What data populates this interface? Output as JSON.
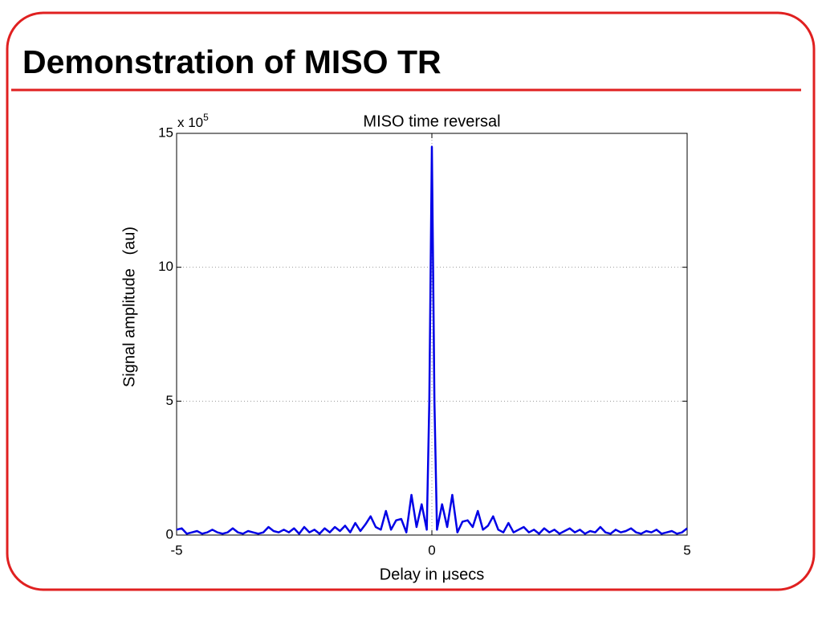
{
  "slide_title": "Demonstration of MISO TR",
  "chart_data": {
    "type": "line",
    "title": "MISO time reversal",
    "xlabel": "Delay in μsecs",
    "ylabel": "Signal amplitude   (au)",
    "y_multiplier": "x 10",
    "y_multiplier_exponent": "5",
    "xlim": [
      -5,
      5
    ],
    "ylim": [
      0,
      15
    ],
    "xticks": [
      -5,
      0,
      5
    ],
    "yticks": [
      0,
      5,
      10,
      15
    ],
    "grid": true,
    "x": [
      -5.0,
      -4.9,
      -4.8,
      -4.7,
      -4.6,
      -4.5,
      -4.4,
      -4.3,
      -4.2,
      -4.1,
      -4.0,
      -3.9,
      -3.8,
      -3.7,
      -3.6,
      -3.5,
      -3.4,
      -3.3,
      -3.2,
      -3.1,
      -3.0,
      -2.9,
      -2.8,
      -2.7,
      -2.6,
      -2.5,
      -2.4,
      -2.3,
      -2.2,
      -2.1,
      -2.0,
      -1.9,
      -1.8,
      -1.7,
      -1.6,
      -1.5,
      -1.4,
      -1.3,
      -1.2,
      -1.1,
      -1.0,
      -0.9,
      -0.8,
      -0.7,
      -0.6,
      -0.5,
      -0.4,
      -0.3,
      -0.2,
      -0.1,
      -0.05,
      0,
      0.05,
      0.1,
      0.2,
      0.3,
      0.4,
      0.5,
      0.6,
      0.7,
      0.8,
      0.9,
      1.0,
      1.1,
      1.2,
      1.3,
      1.4,
      1.5,
      1.6,
      1.7,
      1.8,
      1.9,
      2.0,
      2.1,
      2.2,
      2.3,
      2.4,
      2.5,
      2.6,
      2.7,
      2.8,
      2.9,
      3.0,
      3.1,
      3.2,
      3.3,
      3.4,
      3.5,
      3.6,
      3.7,
      3.8,
      3.9,
      4.0,
      4.1,
      4.2,
      4.3,
      4.4,
      4.5,
      4.6,
      4.7,
      4.8,
      4.9,
      5.0
    ],
    "series": [
      {
        "color": "#0000e6",
        "values": [
          0.2,
          0.25,
          0.05,
          0.1,
          0.15,
          0.05,
          0.1,
          0.2,
          0.1,
          0.05,
          0.1,
          0.25,
          0.1,
          0.05,
          0.15,
          0.1,
          0.05,
          0.1,
          0.3,
          0.15,
          0.1,
          0.2,
          0.1,
          0.25,
          0.05,
          0.3,
          0.1,
          0.2,
          0.05,
          0.25,
          0.1,
          0.3,
          0.15,
          0.35,
          0.1,
          0.45,
          0.15,
          0.4,
          0.7,
          0.3,
          0.2,
          0.9,
          0.2,
          0.55,
          0.6,
          0.1,
          1.5,
          0.3,
          1.15,
          0.2,
          5,
          14.5,
          5,
          0.2,
          1.15,
          0.3,
          1.5,
          0.1,
          0.5,
          0.55,
          0.3,
          0.9,
          0.2,
          0.35,
          0.7,
          0.2,
          0.1,
          0.45,
          0.1,
          0.2,
          0.3,
          0.1,
          0.2,
          0.05,
          0.25,
          0.1,
          0.2,
          0.05,
          0.15,
          0.25,
          0.1,
          0.2,
          0.05,
          0.15,
          0.1,
          0.3,
          0.1,
          0.05,
          0.2,
          0.1,
          0.15,
          0.25,
          0.1,
          0.05,
          0.15,
          0.1,
          0.2,
          0.05,
          0.1,
          0.15,
          0.05,
          0.1,
          0.25
        ]
      }
    ]
  }
}
